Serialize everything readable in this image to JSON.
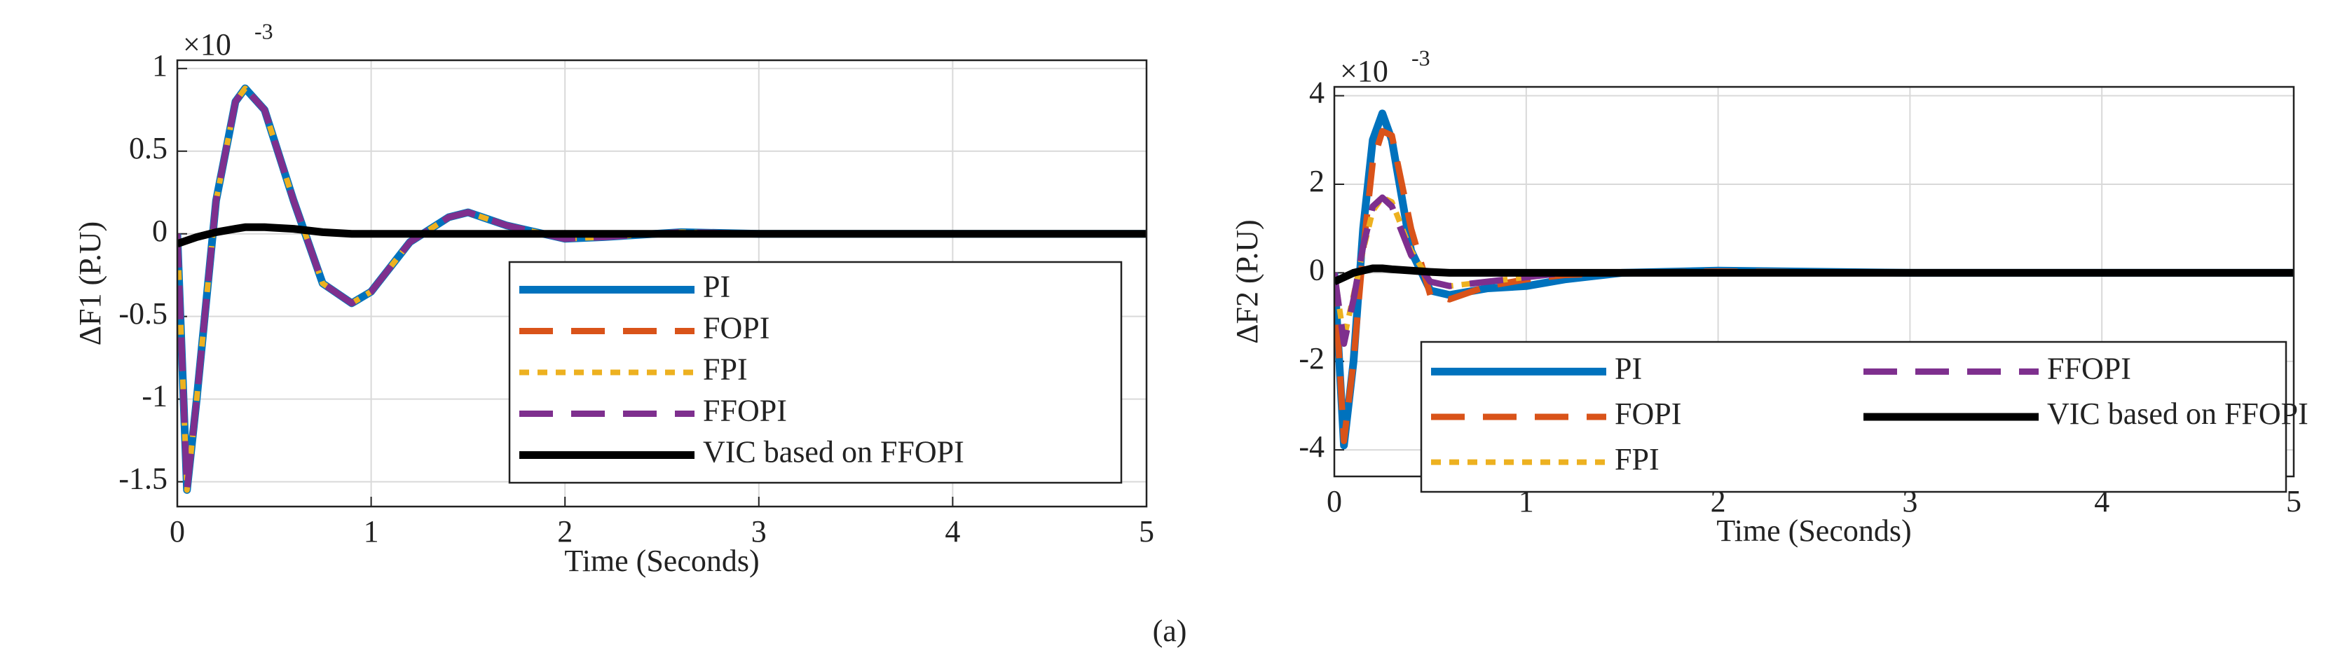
{
  "chart_data": [
    {
      "type": "line",
      "xlabel": "Time (Seconds)",
      "ylabel": "ΔF1 (P.U)",
      "multiplier": "×10",
      "multiplier_exp": "-3",
      "x": [
        0,
        0.05,
        0.1,
        0.2,
        0.3,
        0.35,
        0.45,
        0.6,
        0.75,
        0.9,
        1.0,
        1.2,
        1.4,
        1.5,
        1.7,
        2.0,
        2.2,
        2.6,
        3,
        4,
        5
      ],
      "series": [
        {
          "name": "PI",
          "color": "#0072bd",
          "dash": "solid",
          "values": [
            0,
            -1.55,
            -1.0,
            0.2,
            0.8,
            0.88,
            0.75,
            0.2,
            -0.3,
            -0.42,
            -0.35,
            -0.05,
            0.1,
            0.13,
            0.05,
            -0.03,
            -0.02,
            0.01,
            0,
            0,
            0
          ]
        },
        {
          "name": "FOPI",
          "color": "#d95319",
          "dash": "dashed",
          "values": [
            0,
            -1.55,
            -1.0,
            0.2,
            0.8,
            0.88,
            0.75,
            0.2,
            -0.3,
            -0.42,
            -0.35,
            -0.05,
            0.1,
            0.13,
            0.05,
            -0.03,
            -0.02,
            0.01,
            0,
            0,
            0
          ]
        },
        {
          "name": "FPI",
          "color": "#edb120",
          "dash": "dotted",
          "values": [
            0,
            -1.55,
            -1.0,
            0.2,
            0.8,
            0.88,
            0.75,
            0.2,
            -0.3,
            -0.42,
            -0.35,
            -0.05,
            0.1,
            0.13,
            0.05,
            -0.03,
            -0.02,
            0.01,
            0,
            0,
            0
          ]
        },
        {
          "name": "FFOPI",
          "color": "#7e2f8e",
          "dash": "dashed",
          "values": [
            0,
            -1.55,
            -1.0,
            0.2,
            0.8,
            0.88,
            0.75,
            0.2,
            -0.3,
            -0.42,
            -0.35,
            -0.05,
            0.1,
            0.13,
            0.05,
            -0.03,
            -0.02,
            0.01,
            0,
            0,
            0
          ]
        },
        {
          "name": "VIC based on FFOPI",
          "color": "#000000",
          "dash": "solid",
          "values": [
            -0.06,
            -0.04,
            -0.02,
            0.01,
            0.03,
            0.04,
            0.04,
            0.03,
            0.01,
            0,
            0,
            0,
            0,
            0,
            0,
            0,
            0,
            0,
            0,
            0,
            0
          ]
        }
      ],
      "xlim": [
        0,
        5
      ],
      "ylim": [
        -1.65,
        1.05
      ],
      "xticks": [
        0,
        1,
        2,
        3,
        4,
        5
      ],
      "yticks": [
        1,
        0.5,
        0,
        -0.5,
        -1,
        -1.5
      ],
      "grid": true,
      "legend": "lower right",
      "legend_columns": 1
    },
    {
      "type": "line",
      "xlabel": "Time (Seconds)",
      "ylabel": "ΔF2 (P.U)",
      "multiplier": "×10",
      "multiplier_exp": "-3",
      "x": [
        0,
        0.05,
        0.1,
        0.15,
        0.2,
        0.25,
        0.3,
        0.4,
        0.5,
        0.6,
        0.8,
        1.0,
        1.2,
        1.5,
        2,
        3,
        4,
        5
      ],
      "series": [
        {
          "name": "PI",
          "color": "#0072bd",
          "dash": "solid",
          "values": [
            0,
            -3.9,
            -2,
            1,
            3,
            3.6,
            3,
            0.5,
            -0.4,
            -0.5,
            -0.35,
            -0.3,
            -0.15,
            0,
            0.05,
            0,
            0,
            0
          ]
        },
        {
          "name": "FOPI",
          "color": "#d95319",
          "dash": "dashed",
          "values": [
            0,
            -3.8,
            -2,
            0.5,
            2.5,
            3.2,
            3.1,
            1,
            -0.5,
            -0.6,
            -0.3,
            -0.15,
            -0.05,
            0,
            0.03,
            0,
            0,
            0
          ]
        },
        {
          "name": "FPI",
          "color": "#edb120",
          "dash": "dotted",
          "values": [
            0,
            -1.5,
            -0.5,
            0.5,
            1.4,
            1.7,
            1.6,
            0.5,
            -0.2,
            -0.3,
            -0.2,
            -0.1,
            0,
            0,
            0,
            0,
            0,
            0
          ]
        },
        {
          "name": "FFOPI",
          "color": "#7e2f8e",
          "dash": "dashed",
          "values": [
            0,
            -1.6,
            -0.6,
            0.6,
            1.5,
            1.7,
            1.5,
            0.4,
            -0.2,
            -0.3,
            -0.2,
            -0.1,
            0,
            0,
            0,
            0,
            0,
            0
          ]
        },
        {
          "name": "VIC based on FFOPI",
          "color": "#000000",
          "dash": "solid",
          "values": [
            -0.2,
            -0.1,
            0,
            0.05,
            0.1,
            0.1,
            0.08,
            0.05,
            0.02,
            0,
            0,
            0,
            0,
            0,
            0,
            0,
            0,
            0
          ]
        }
      ],
      "xlim": [
        0,
        5
      ],
      "ylim": [
        -4.6,
        4.2
      ],
      "xticks": [
        0,
        1,
        2,
        3,
        4,
        5
      ],
      "yticks": [
        4,
        2,
        0,
        -2,
        -4
      ],
      "grid": true,
      "legend": "lower right",
      "legend_columns": 2
    }
  ],
  "caption": "(a)"
}
